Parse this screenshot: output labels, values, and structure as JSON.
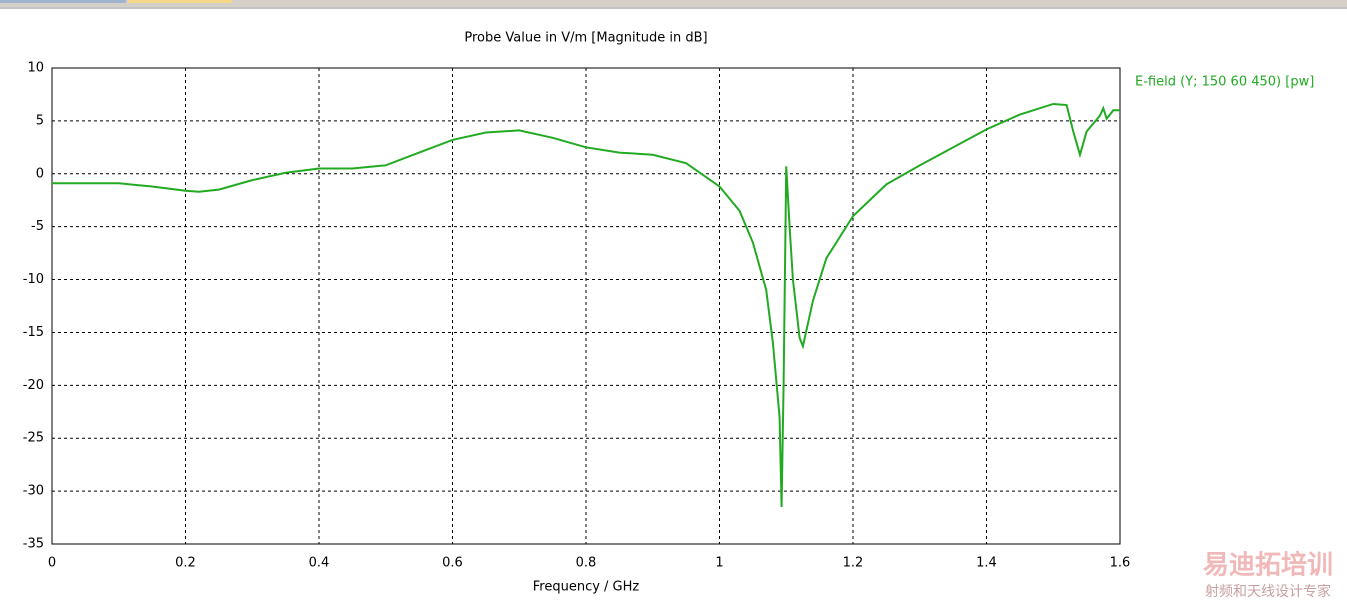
{
  "chart_data": {
    "type": "line",
    "title": "Probe Value in V/m [Magnitude in dB]",
    "x_label": "Frequency / GHz",
    "x": [
      0,
      0.1,
      0.15,
      0.2,
      0.22,
      0.25,
      0.3,
      0.35,
      0.4,
      0.45,
      0.5,
      0.55,
      0.6,
      0.65,
      0.7,
      0.75,
      0.8,
      0.85,
      0.9,
      0.95,
      1.0,
      1.03,
      1.05,
      1.07,
      1.08,
      1.09,
      1.093,
      1.096,
      1.1,
      1.105,
      1.11,
      1.12,
      1.125,
      1.14,
      1.16,
      1.2,
      1.25,
      1.3,
      1.35,
      1.4,
      1.45,
      1.5,
      1.52,
      1.53,
      1.54,
      1.55,
      1.57,
      1.575,
      1.58,
      1.59,
      1.6
    ],
    "series": [
      {
        "name": "E-field (Y; 150 60 450) [pw]",
        "color": "#22aa22",
        "values": [
          -0.9,
          -0.9,
          -1.2,
          -1.6,
          -1.7,
          -1.5,
          -0.6,
          0.1,
          0.5,
          0.5,
          0.8,
          2.0,
          3.2,
          3.9,
          4.1,
          3.4,
          2.5,
          2.0,
          1.8,
          1.0,
          -1.2,
          -3.5,
          -6.5,
          -11,
          -16,
          -23,
          -31.5,
          -20,
          0.7,
          -5,
          -10,
          -15.5,
          -16.3,
          -12,
          -8,
          -4,
          -1,
          0.8,
          2.5,
          4.2,
          5.6,
          6.6,
          6.5,
          4,
          1.8,
          4,
          5.5,
          6.2,
          5.2,
          6.0,
          6.0
        ]
      }
    ],
    "xlim": [
      0,
      1.6
    ],
    "xticks": [
      0,
      0.2,
      0.4,
      0.6,
      0.8,
      1,
      1.2,
      1.4,
      1.6
    ],
    "ylim": [
      -35,
      10
    ],
    "yticks": [
      -35,
      -30,
      -25,
      -20,
      -15,
      -10,
      -5,
      0,
      5,
      10
    ],
    "grid": true
  },
  "watermark": {
    "title": "易迪拓培训",
    "subtitle": "射频和天线设计专家"
  }
}
